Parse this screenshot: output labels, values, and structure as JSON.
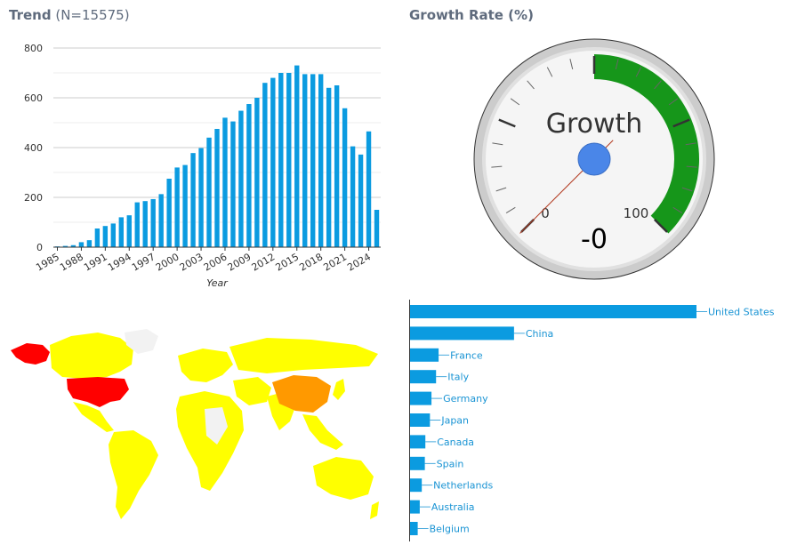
{
  "trend": {
    "title_bold": "Trend",
    "title_rest": " (N=15575)"
  },
  "gauge": {
    "title": "Growth Rate (%)"
  },
  "chart_data": [
    {
      "type": "bar",
      "title": "Trend (N=15575)",
      "xlabel": "Year",
      "ylabel": "",
      "ylim": [
        0,
        850
      ],
      "yticks": [
        0,
        200,
        400,
        600,
        800
      ],
      "xtick_labels": [
        "1985",
        "1988",
        "1991",
        "1994",
        "1997",
        "2000",
        "2003",
        "2006",
        "2009",
        "2012",
        "2015",
        "2018",
        "2021",
        "2024"
      ],
      "categories": [
        1985,
        1986,
        1987,
        1988,
        1989,
        1990,
        1991,
        1992,
        1993,
        1994,
        1995,
        1996,
        1997,
        1998,
        1999,
        2000,
        2001,
        2002,
        2003,
        2004,
        2005,
        2006,
        2007,
        2008,
        2009,
        2010,
        2011,
        2012,
        2013,
        2014,
        2015,
        2016,
        2017,
        2018,
        2019,
        2020,
        2021,
        2022,
        2023,
        2024,
        2025
      ],
      "values": [
        3,
        5,
        8,
        20,
        28,
        75,
        85,
        95,
        120,
        128,
        180,
        185,
        193,
        213,
        275,
        320,
        330,
        378,
        398,
        440,
        475,
        520,
        505,
        548,
        575,
        600,
        660,
        680,
        700,
        700,
        730,
        695,
        695,
        695,
        640,
        650,
        558,
        405,
        372,
        465,
        150
      ],
      "color": "#0b9be0",
      "grid": true
    },
    {
      "type": "gauge",
      "title": "Growth Rate (%)",
      "label": "Growth",
      "value": 0,
      "value_text": "-0",
      "min_label": "0",
      "max_label": "100",
      "band_color": "#16961a",
      "needle_color": "#e8674a",
      "hub_color": "#4a86e8"
    },
    {
      "type": "map",
      "title": "",
      "legend": "none",
      "highlight": [
        {
          "country": "United States",
          "color": "#ff0000"
        },
        {
          "country": "China",
          "color": "#ff9900"
        }
      ],
      "default_color": "#ffff00",
      "no_data_color": "#f2f2f2"
    },
    {
      "type": "bar",
      "orientation": "horizontal",
      "title": "",
      "categories": [
        "United States",
        "China",
        "France",
        "Italy",
        "Germany",
        "Japan",
        "Canada",
        "Spain",
        "Netherlands",
        "Australia",
        "Belgium"
      ],
      "values": [
        2810,
        1020,
        280,
        255,
        210,
        195,
        150,
        145,
        115,
        95,
        75
      ],
      "color": "#0b9be0"
    }
  ]
}
